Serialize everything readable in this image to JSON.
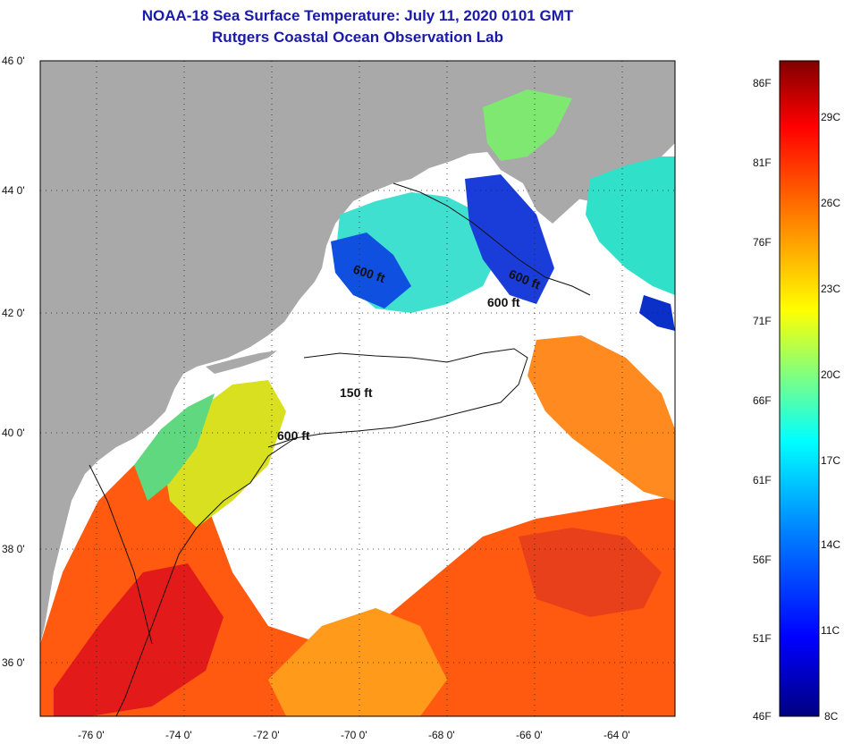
{
  "title": "NOAA-18 Sea Surface Temperature:  July 11, 2020 0101 GMT",
  "subtitle": "Rutgers Coastal Ocean Observation Lab",
  "map": {
    "lat_ticks": [
      "46 0'",
      "44 0'",
      "42 0'",
      "40 0'",
      "38 0'",
      "36 0'"
    ],
    "lon_ticks": [
      "-76 0'",
      "-74 0'",
      "-72 0'",
      "-70 0'",
      "-68 0'",
      "-66 0'",
      "-64 0'"
    ],
    "contour_labels": [
      "600 ft",
      "600 ft",
      "600 ft",
      "150 ft",
      "600 ft"
    ],
    "colors": {
      "land": "#a9a9a9",
      "cloud": "#ffffff",
      "grid": "#222222"
    }
  },
  "colorbar": {
    "fahrenheit_labels": [
      "86F",
      "81F",
      "76F",
      "71F",
      "66F",
      "61F",
      "56F",
      "51F",
      "46F"
    ],
    "celsius_labels": [
      "29C",
      "26C",
      "23C",
      "20C",
      "17C",
      "14C",
      "11C",
      "8C"
    ],
    "range_f": [
      46,
      88
    ],
    "gradient_colors": [
      "#000080",
      "#0000ff",
      "#0080ff",
      "#00ffff",
      "#80ff80",
      "#ffff00",
      "#ff8000",
      "#ff0000",
      "#800000"
    ]
  }
}
